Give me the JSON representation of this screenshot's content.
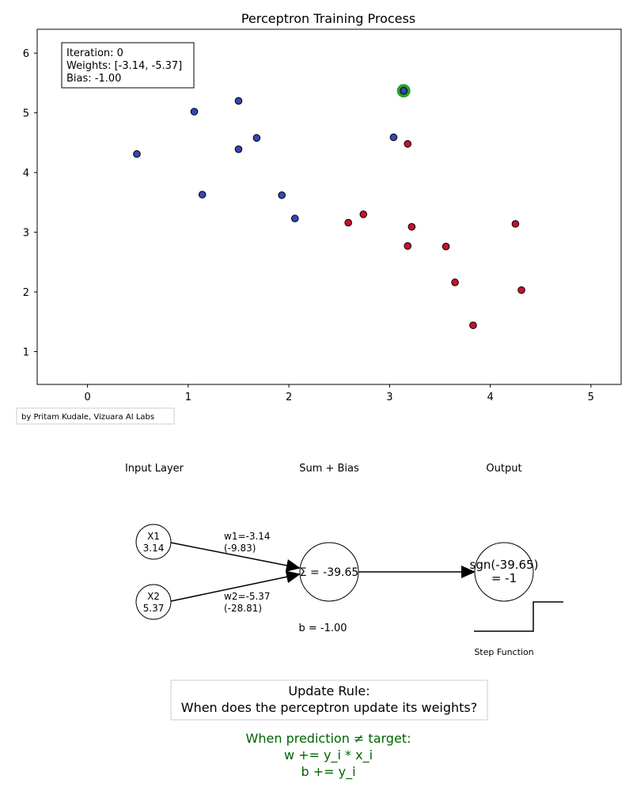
{
  "chart_data": {
    "type": "scatter",
    "title": "Perceptron Training Process",
    "xlabel": "",
    "ylabel": "",
    "xlim": [
      -0.5,
      5.3
    ],
    "ylim": [
      0.45,
      6.4
    ],
    "xticks": [
      0,
      1,
      2,
      3,
      4,
      5
    ],
    "yticks": [
      1,
      2,
      3,
      4,
      5,
      6
    ],
    "grid": false,
    "series": [
      {
        "color": "#3547b5",
        "points": [
          [
            0.49,
            4.31
          ],
          [
            1.06,
            5.02
          ],
          [
            1.14,
            3.63
          ],
          [
            1.5,
            5.2
          ],
          [
            1.5,
            4.39
          ],
          [
            1.68,
            4.58
          ],
          [
            1.93,
            3.62
          ],
          [
            2.06,
            3.23
          ],
          [
            3.04,
            4.59
          ],
          [
            3.14,
            5.37
          ]
        ]
      },
      {
        "color": "#c8102e",
        "points": [
          [
            2.59,
            3.16
          ],
          [
            2.74,
            3.3
          ],
          [
            3.18,
            4.48
          ],
          [
            3.22,
            3.09
          ],
          [
            3.18,
            2.77
          ],
          [
            3.56,
            2.76
          ],
          [
            3.65,
            2.16
          ],
          [
            4.25,
            3.14
          ],
          [
            4.31,
            2.03
          ],
          [
            3.83,
            1.44
          ]
        ]
      }
    ],
    "highlight_point": [
      3.14,
      5.37
    ],
    "highlight_color": "#2ca02c",
    "info_box": [
      "Iteration: 0",
      "Weights: [-3.14, -5.37]",
      "Bias: -1.00"
    ]
  },
  "credit": "by Pritam Kudale, Vizuara AI Labs",
  "diagram": {
    "layer_labels": [
      "Input Layer",
      "Sum + Bias",
      "Output"
    ],
    "x1_label": "X1",
    "x1_value": "3.14",
    "x2_label": "X2",
    "x2_value": "5.37",
    "w1_line1": "w1=-3.14",
    "w1_line2": "(-9.83)",
    "w2_line1": "w2=-5.37",
    "w2_line2": "(-28.81)",
    "sum_label": "Σ = -39.65",
    "bias_label": "b = -1.00",
    "output_line1": "sgn(-39.65)",
    "output_line2": "= -1",
    "step_label": "Step Function"
  },
  "update_rule": {
    "title_line1": "Update Rule:",
    "title_line2": "When does the perceptron update its weights?",
    "green_color": "#006400",
    "rule_line1": "When prediction ≠ target:",
    "rule_line2": "w += y_i * x_i",
    "rule_line3": "b += y_i"
  }
}
